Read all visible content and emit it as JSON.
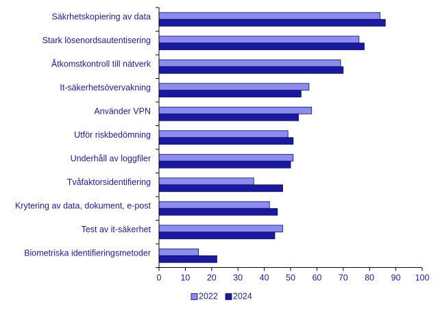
{
  "chart_data": {
    "type": "bar",
    "orientation": "horizontal",
    "categories": [
      "Säkrhetskopiering av data",
      "Stark lösenordsautentisering",
      "Åtkomstkontroll till nätverk",
      "It-säkerhetsövervakning",
      "Använder VPN",
      "Utför riskbedömning",
      "Underhåll av loggfiler",
      "Tvåfaktorsidentifiering",
      "Krytering av data, dokument, e-post",
      "Test av it-säkerhet",
      "Biometriska identifieringsmetoder"
    ],
    "series": [
      {
        "name": "2022",
        "color": "#8c8cf0",
        "values": [
          84,
          76,
          69,
          57,
          58,
          49,
          51,
          36,
          42,
          47,
          15
        ]
      },
      {
        "name": "2024",
        "color": "#1a1aa0",
        "values": [
          86,
          78,
          70,
          54,
          53,
          51,
          50,
          47,
          45,
          44,
          22
        ]
      }
    ],
    "xlim": [
      0,
      100
    ],
    "xticks": [
      0,
      10,
      20,
      30,
      40,
      50,
      60,
      70,
      80,
      90,
      100
    ],
    "grid": false,
    "legend": "bottom-center",
    "title": "",
    "xlabel": "",
    "ylabel": ""
  }
}
